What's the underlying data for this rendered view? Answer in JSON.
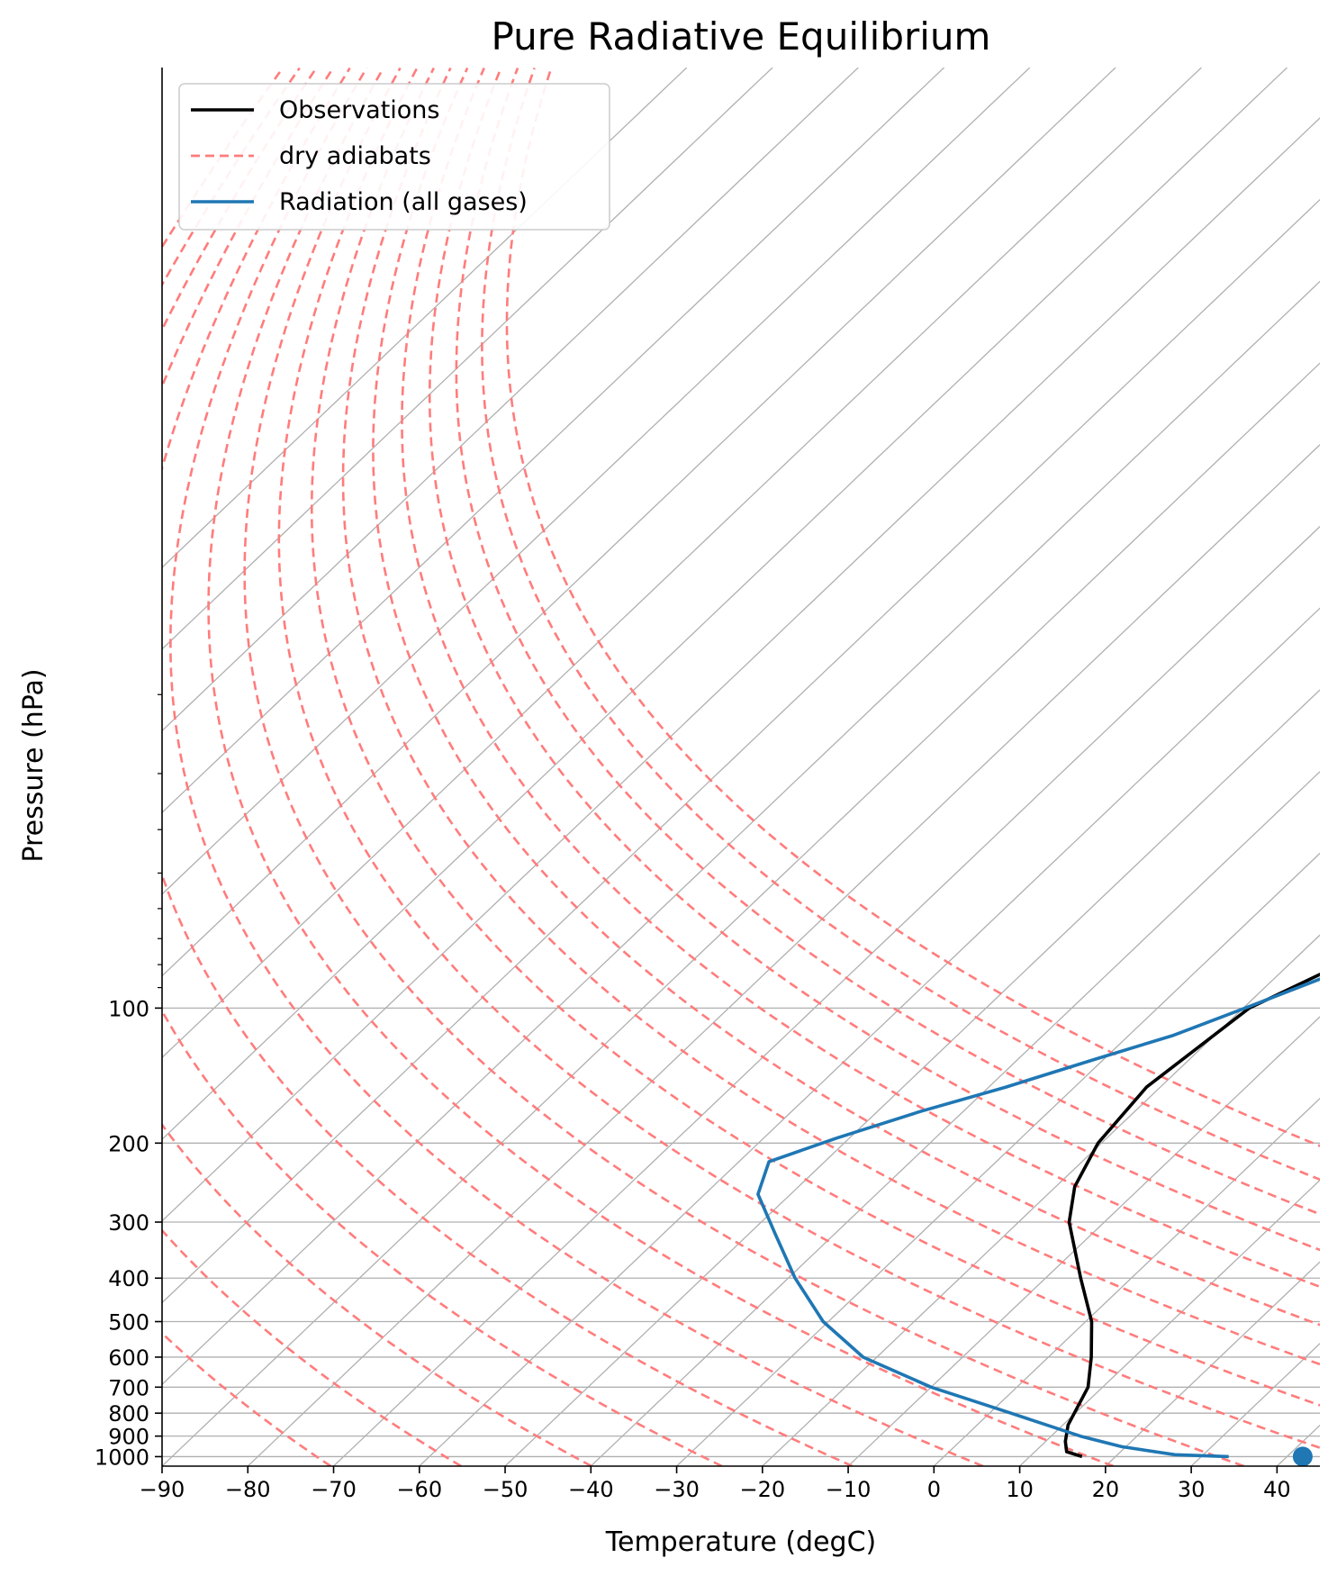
{
  "chart_data": {
    "type": "line",
    "title": "Pure Radiative Equilibrium",
    "xlabel": "Temperature (degC)",
    "ylabel": "Pressure (hPa)",
    "xlim": [
      -90,
      45
    ],
    "ylim": [
      1050,
      0.8
    ],
    "yscale": "log",
    "skew": true,
    "grid": true,
    "legend_position": "top-left",
    "x_ticks": [
      -90,
      -80,
      -70,
      -60,
      -50,
      -40,
      -30,
      -20,
      -10,
      0,
      10,
      20,
      30,
      40
    ],
    "x_tick_labels": [
      "−90",
      "−80",
      "−70",
      "−60",
      "−50",
      "−40",
      "−30",
      "−20",
      "−10",
      "0",
      "10",
      "20",
      "30",
      "40"
    ],
    "y_ticks": [
      100,
      200,
      300,
      400,
      500,
      600,
      700,
      800,
      900,
      1000
    ],
    "y_tick_labels": [
      "100",
      "200",
      "300",
      "400",
      "500",
      "600",
      "700",
      "800",
      "900",
      "1000"
    ],
    "dry_adiabat_theta_K": [
      200,
      215,
      230,
      245,
      260,
      275,
      290,
      305,
      320,
      335,
      350,
      365,
      380,
      395,
      410,
      425,
      440
    ],
    "series": [
      {
        "name": "Observations",
        "color": "#000000",
        "style": "solid",
        "points": [
          [
            1000,
            16.1
          ],
          [
            975,
            13.7
          ],
          [
            925,
            12.3
          ],
          [
            850,
            10.6
          ],
          [
            700,
            8.3
          ],
          [
            600,
            5.0
          ],
          [
            500,
            0.7
          ],
          [
            400,
            -5.9
          ],
          [
            300,
            -14.1
          ],
          [
            250,
            -17.8
          ],
          [
            200,
            -20.4
          ],
          [
            150,
            -21.6
          ],
          [
            100,
            -19.3
          ],
          [
            70,
            -10.8
          ],
          [
            50,
            -6.2
          ],
          [
            30,
            -1.0
          ],
          [
            20,
            2.4
          ],
          [
            10,
            9.9
          ],
          [
            7,
            14.3
          ],
          [
            5,
            18.7
          ],
          [
            3,
            27.7
          ],
          [
            2,
            37.4
          ],
          [
            1.5,
            45.0
          ]
        ]
      },
      {
        "name": "dry adiabats",
        "color": "#ff7c7c",
        "style": "dashed",
        "points": []
      },
      {
        "name": "Radiation (all gases)",
        "color": "#1f77b4",
        "style": "solid",
        "points": [
          [
            1000,
            33.2
          ],
          [
            990,
            26.7
          ],
          [
            950,
            19.5
          ],
          [
            900,
            13.4
          ],
          [
            800,
            2.5
          ],
          [
            700,
            -10.0
          ],
          [
            600,
            -21.6
          ],
          [
            500,
            -30.6
          ],
          [
            400,
            -39.2
          ],
          [
            320,
            -46.8
          ],
          [
            260,
            -53.8
          ],
          [
            220,
            -56.5
          ],
          [
            195,
            -51.5
          ],
          [
            170,
            -45.0
          ],
          [
            150,
            -38.0
          ],
          [
            130,
            -31.0
          ],
          [
            115,
            -24.8
          ],
          [
            100,
            -19.8
          ],
          [
            80,
            -12.0
          ],
          [
            60,
            -2.4
          ],
          [
            40,
            11.7
          ],
          [
            30,
            20.3
          ],
          [
            20,
            31.4
          ],
          [
            15,
            38.5
          ],
          [
            12,
            45.0
          ]
        ]
      }
    ],
    "markers": [
      {
        "name": "surface temperature",
        "x": 43,
        "y": 1000,
        "color": "#1f77b4"
      }
    ]
  }
}
